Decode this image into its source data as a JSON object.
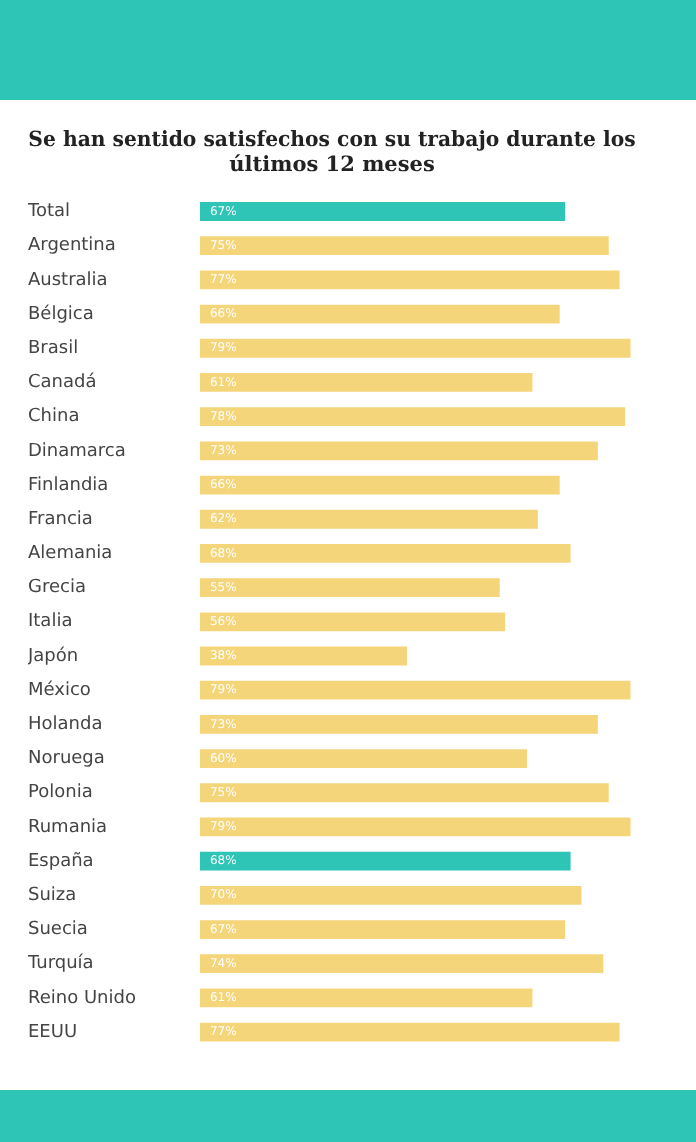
{
  "chart_data": {
    "type": "bar",
    "orientation": "horizontal",
    "title": "Se han sentido satisfechos con su trabajo durante los últimos 12 meses",
    "categories": [
      "Total",
      "Argentina",
      "Australia",
      "Bélgica",
      "Brasil",
      "Canadá",
      "China",
      "Dinamarca",
      "Finlandia",
      "Francia",
      "Alemania",
      "Grecia",
      "Italia",
      "Japón",
      "México",
      "Holanda",
      "Noruega",
      "Polonia",
      "Rumania",
      "España",
      "Suiza",
      "Suecia",
      "Turquía",
      "Reino Unido",
      "EEUU"
    ],
    "values": [
      67,
      75,
      77,
      66,
      79,
      61,
      78,
      73,
      66,
      62,
      68,
      55,
      56,
      38,
      79,
      73,
      60,
      75,
      79,
      68,
      70,
      67,
      74,
      61,
      77
    ],
    "value_labels": [
      "67%",
      "75%",
      "77%",
      "66%",
      "79%",
      "61%",
      "78%",
      "73%",
      "66%",
      "62%",
      "68%",
      "55%",
      "56%",
      "38%",
      "79%",
      "73%",
      "60%",
      "75%",
      "79%",
      "68%",
      "70%",
      "67%",
      "74%",
      "61%",
      "77%"
    ],
    "colors": [
      "#2ec4b6",
      "#f5d57a",
      "#f5d57a",
      "#f5d57a",
      "#f5d57a",
      "#f5d57a",
      "#f5d57a",
      "#f5d57a",
      "#f5d57a",
      "#f5d57a",
      "#f5d57a",
      "#f5d57a",
      "#f5d57a",
      "#f5d57a",
      "#f5d57a",
      "#f5d57a",
      "#f5d57a",
      "#f5d57a",
      "#f5d57a",
      "#2ec4b6",
      "#f5d57a",
      "#f5d57a",
      "#f5d57a",
      "#f5d57a",
      "#f5d57a"
    ],
    "legend": false
  }
}
